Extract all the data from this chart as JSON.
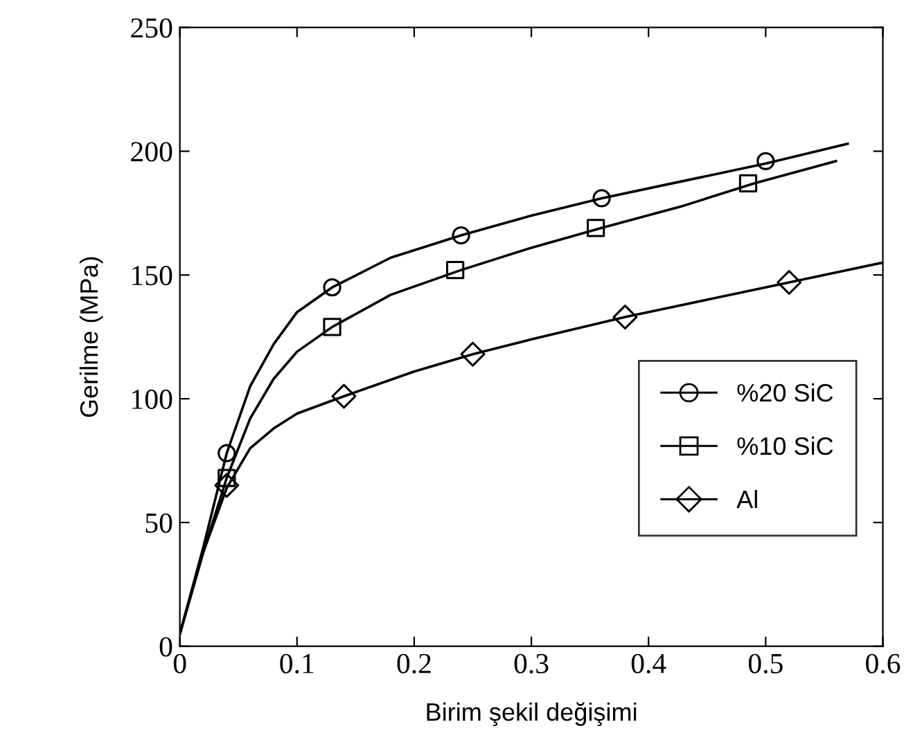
{
  "chart_data": {
    "type": "line",
    "xlabel": "Birim şekil değişimi",
    "ylabel": "Gerilme (MPa)",
    "xlim": [
      0,
      0.6
    ],
    "ylim": [
      0,
      250
    ],
    "xticks": [
      0,
      0.1,
      0.2,
      0.3,
      0.4,
      0.5,
      0.6
    ],
    "yticks": [
      0,
      50,
      100,
      150,
      200,
      250
    ],
    "grid": false,
    "legend": "right",
    "series": [
      {
        "color": "#000000",
        "marker": "none",
        "x": [
          0,
          0.02,
          0.04,
          0.06,
          0.08,
          0.1,
          0.13,
          0.18,
          0.24,
          0.3,
          0.36,
          0.43,
          0.5,
          0.57
        ],
        "values": [
          5,
          40,
          78,
          105,
          122,
          135,
          145,
          157,
          166,
          174,
          181,
          188,
          195,
          203
        ]
      },
      {
        "color": "#000000",
        "marker": "none",
        "x": [
          0,
          0.02,
          0.04,
          0.06,
          0.08,
          0.1,
          0.13,
          0.18,
          0.24,
          0.3,
          0.36,
          0.43,
          0.49,
          0.56
        ],
        "values": [
          5,
          38,
          68,
          92,
          108,
          119,
          129,
          142,
          152,
          161,
          169,
          178,
          187,
          196
        ]
      },
      {
        "color": "#000000",
        "marker": "none",
        "x": [
          0,
          0.02,
          0.04,
          0.06,
          0.08,
          0.1,
          0.14,
          0.2,
          0.25,
          0.3,
          0.38,
          0.45,
          0.52,
          0.6
        ],
        "values": [
          5,
          38,
          64,
          80,
          88,
          94,
          101,
          111,
          118,
          124,
          133,
          140,
          147,
          155
        ]
      },
      {
        "type": "scatter",
        "name": "%20 SiC",
        "color": "#000000",
        "marker": "circle",
        "x": [
          0.04,
          0.13,
          0.24,
          0.36,
          0.5
        ],
        "values": [
          78,
          145,
          166,
          181,
          196
        ]
      },
      {
        "type": "scatter",
        "name": "%10 SiC",
        "color": "#000000",
        "marker": "square",
        "x": [
          0.04,
          0.13,
          0.235,
          0.355,
          0.485
        ],
        "values": [
          68,
          129,
          152,
          169,
          187
        ]
      },
      {
        "type": "scatter",
        "name": "Al",
        "color": "#000000",
        "marker": "diamond",
        "x": [
          0.04,
          0.14,
          0.25,
          0.38,
          0.52
        ],
        "values": [
          65,
          101,
          118,
          133,
          147
        ]
      }
    ]
  }
}
